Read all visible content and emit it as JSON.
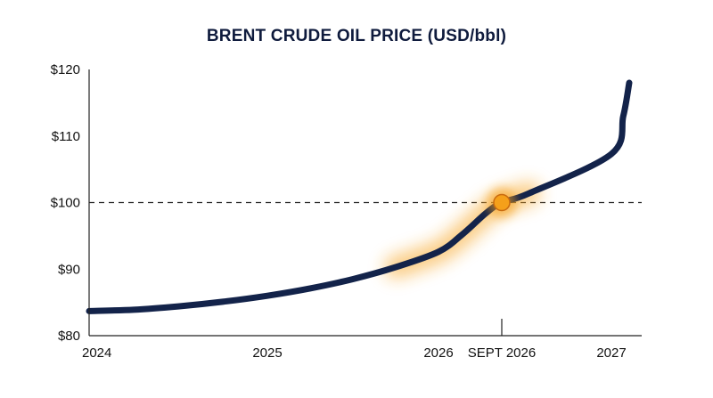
{
  "chart_data": {
    "type": "line",
    "title": "BRENT CRUDE OIL PRICE (USD/bbl)",
    "xlabel": "",
    "ylabel": "",
    "ylim": [
      80,
      120
    ],
    "xlim": [
      "2024-01",
      "2027-04"
    ],
    "y_ticks": [
      {
        "value": 120,
        "label": "$120"
      },
      {
        "value": 110,
        "label": "$110"
      },
      {
        "value": 100,
        "label": "$100"
      },
      {
        "value": 90,
        "label": "$90"
      },
      {
        "value": 80,
        "label": "$80"
      }
    ],
    "x_ticks": [
      {
        "date": "2024-01",
        "label": "2024"
      },
      {
        "date": "2025-01",
        "label": "2025"
      },
      {
        "date": "2026-01",
        "label": "2026"
      },
      {
        "date": "2026-09",
        "label": "SEPT 2026"
      },
      {
        "date": "2027-01",
        "label": "2027"
      }
    ],
    "reference_line": {
      "y": 100,
      "style": "dashed"
    },
    "highlight_point": {
      "date": "2026-09",
      "y": 100,
      "color": "#f5a01a"
    },
    "series": [
      {
        "color": "#13234a",
        "points": [
          {
            "date": "2024-01",
            "y": 83.7
          },
          {
            "date": "2024-04",
            "y": 83.9
          },
          {
            "date": "2024-07",
            "y": 84.4
          },
          {
            "date": "2024-10",
            "y": 85.1
          },
          {
            "date": "2025-01",
            "y": 86.0
          },
          {
            "date": "2025-04",
            "y": 87.1
          },
          {
            "date": "2025-07",
            "y": 88.5
          },
          {
            "date": "2025-10",
            "y": 90.3
          },
          {
            "date": "2026-01",
            "y": 92.6
          },
          {
            "date": "2026-04",
            "y": 95.2
          },
          {
            "date": "2026-07",
            "y": 98.4
          },
          {
            "date": "2026-09",
            "y": 100.0
          },
          {
            "date": "2026-10",
            "y": 101.4
          },
          {
            "date": "2027-01",
            "y": 107.3
          },
          {
            "date": "2027-03",
            "y": 113.0
          },
          {
            "date": "2027-04",
            "y": 118.0
          }
        ]
      }
    ]
  }
}
